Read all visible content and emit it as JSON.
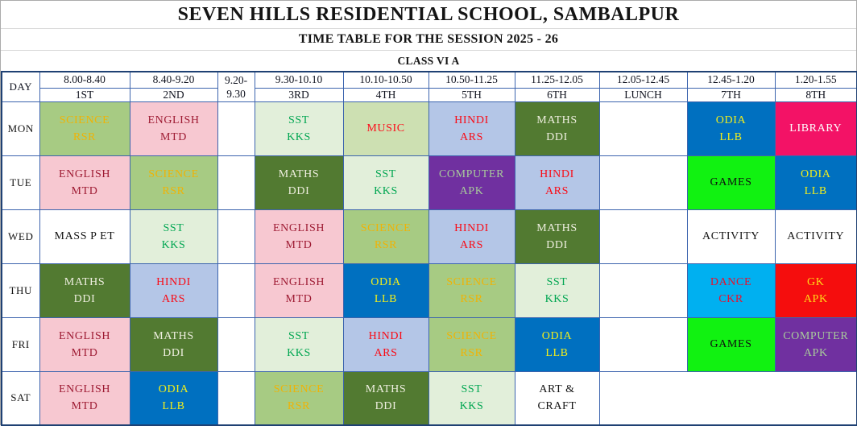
{
  "header": {
    "school_name": "SEVEN HILLS RESIDENTIAL SCHOOL, SAMBALPUR",
    "session_title": "TIME TABLE FOR THE SESSION 2025 - 26",
    "class_label": "CLASS VI A"
  },
  "table": {
    "day_header": "DAY",
    "columns": [
      {
        "time": "8.00-8.40",
        "period": "1ST"
      },
      {
        "time": "8.40-9.20",
        "period": "2ND"
      },
      {
        "time_lines": [
          "9.20-",
          "9.30"
        ],
        "is_break": true
      },
      {
        "time": "9.30-10.10",
        "period": "3RD"
      },
      {
        "time": "10.10-10.50",
        "period": "4TH"
      },
      {
        "time": "10.50-11.25",
        "period": "5TH"
      },
      {
        "time": "11.25-12.05",
        "period": "6TH"
      },
      {
        "time": "12.05-12.45",
        "period": "LUNCH"
      },
      {
        "time": "12.45-1.20",
        "period": "7TH"
      },
      {
        "time": "1.20-1.55",
        "period": "8TH"
      }
    ],
    "rows": [
      {
        "day": "MON",
        "cells": [
          {
            "lines": [
              "SCIENCE",
              "RSR"
            ],
            "style": "science"
          },
          {
            "lines": [
              "ENGLISH",
              "MTD"
            ],
            "style": "english"
          },
          {
            "lines": [],
            "style": "empty"
          },
          {
            "lines": [
              "SST",
              "KKS"
            ],
            "style": "sst"
          },
          {
            "lines": [
              "MUSIC"
            ],
            "style": "music"
          },
          {
            "lines": [
              "HINDI",
              "ARS"
            ],
            "style": "hindi"
          },
          {
            "lines": [
              "MATHS",
              "DDI"
            ],
            "style": "maths"
          },
          {
            "lines": [],
            "style": "empty"
          },
          {
            "lines": [
              "ODIA",
              "LLB"
            ],
            "style": "odia"
          },
          {
            "lines": [
              "LIBRARY"
            ],
            "style": "library"
          }
        ]
      },
      {
        "day": "TUE",
        "cells": [
          {
            "lines": [
              "ENGLISH",
              "MTD"
            ],
            "style": "english"
          },
          {
            "lines": [
              "SCIENCE",
              "RSR"
            ],
            "style": "science"
          },
          {
            "lines": [],
            "style": "empty"
          },
          {
            "lines": [
              "MATHS",
              "DDI"
            ],
            "style": "maths"
          },
          {
            "lines": [
              "SST",
              "KKS"
            ],
            "style": "sst"
          },
          {
            "lines": [
              "COMPUTER",
              "APK"
            ],
            "style": "computer"
          },
          {
            "lines": [
              "HINDI",
              "ARS"
            ],
            "style": "hindi"
          },
          {
            "lines": [],
            "style": "empty"
          },
          {
            "lines": [
              "GAMES"
            ],
            "style": "games"
          },
          {
            "lines": [
              "ODIA",
              "LLB"
            ],
            "style": "odia"
          }
        ]
      },
      {
        "day": "WED",
        "cells": [
          {
            "lines": [
              "MASS P ET"
            ],
            "style": "plain"
          },
          {
            "lines": [
              "SST",
              "KKS"
            ],
            "style": "sst"
          },
          {
            "lines": [],
            "style": "empty"
          },
          {
            "lines": [
              "ENGLISH",
              "MTD"
            ],
            "style": "english"
          },
          {
            "lines": [
              "SCIENCE",
              "RSR"
            ],
            "style": "science"
          },
          {
            "lines": [
              "HINDI",
              "ARS"
            ],
            "style": "hindi"
          },
          {
            "lines": [
              "MATHS",
              "DDI"
            ],
            "style": "maths"
          },
          {
            "lines": [],
            "style": "empty"
          },
          {
            "lines": [
              "ACTIVITY"
            ],
            "style": "plain"
          },
          {
            "lines": [
              "ACTIVITY"
            ],
            "style": "plain"
          }
        ]
      },
      {
        "day": "THU",
        "cells": [
          {
            "lines": [
              "MATHS",
              "DDI"
            ],
            "style": "maths"
          },
          {
            "lines": [
              "HINDI",
              "ARS"
            ],
            "style": "hindi"
          },
          {
            "lines": [],
            "style": "empty"
          },
          {
            "lines": [
              "ENGLISH",
              "MTD"
            ],
            "style": "english"
          },
          {
            "lines": [
              "ODIA",
              "LLB"
            ],
            "style": "odia"
          },
          {
            "lines": [
              "SCIENCE",
              "RSR"
            ],
            "style": "science"
          },
          {
            "lines": [
              "SST",
              "KKS"
            ],
            "style": "sst"
          },
          {
            "lines": [],
            "style": "empty"
          },
          {
            "lines": [
              "DANCE",
              "CKR"
            ],
            "style": "dance"
          },
          {
            "lines": [
              "GK",
              "APK"
            ],
            "style": "gk"
          }
        ]
      },
      {
        "day": "FRI",
        "cells": [
          {
            "lines": [
              "ENGLISH",
              "MTD"
            ],
            "style": "english"
          },
          {
            "lines": [
              "MATHS",
              "DDI"
            ],
            "style": "maths"
          },
          {
            "lines": [],
            "style": "empty"
          },
          {
            "lines": [
              "SST",
              "KKS"
            ],
            "style": "sst"
          },
          {
            "lines": [
              "HINDI",
              "ARS"
            ],
            "style": "hindi"
          },
          {
            "lines": [
              "SCIENCE",
              "RSR"
            ],
            "style": "science"
          },
          {
            "lines": [
              "ODIA",
              "LLB"
            ],
            "style": "odia"
          },
          {
            "lines": [],
            "style": "empty"
          },
          {
            "lines": [
              "GAMES"
            ],
            "style": "games"
          },
          {
            "lines": [
              "COMPUTER",
              "APK"
            ],
            "style": "computer"
          }
        ]
      },
      {
        "day": "SAT",
        "cells": [
          {
            "lines": [
              "ENGLISH",
              "MTD"
            ],
            "style": "english"
          },
          {
            "lines": [
              "ODIA",
              "LLB"
            ],
            "style": "odia"
          },
          {
            "lines": [],
            "style": "empty"
          },
          {
            "lines": [
              "SCIENCE",
              "RSR"
            ],
            "style": "science"
          },
          {
            "lines": [
              "MATHS",
              "DDI"
            ],
            "style": "maths"
          },
          {
            "lines": [
              "SST",
              "KKS"
            ],
            "style": "sst"
          },
          {
            "lines": [
              "ART &",
              "CRAFT"
            ],
            "style": "plain"
          },
          {
            "lines": [],
            "style": "empty",
            "span": 3
          }
        ]
      }
    ]
  },
  "colors": {
    "grid_border": "#3c64ae",
    "outer_border": "#1f4173",
    "styles": {
      "science": {
        "bg": "#a7cb83",
        "fg": "#efb306"
      },
      "english": {
        "bg": "#f7c8d1",
        "fg": "#9e1b33"
      },
      "sst": {
        "bg": "#e2efda",
        "fg": "#00a651"
      },
      "music": {
        "bg": "#cde0b2",
        "fg": "#fc0d1b"
      },
      "hindi": {
        "bg": "#b4c6e7",
        "fg": "#fa0a14"
      },
      "maths": {
        "bg": "#527a31",
        "fg": "#efefe0"
      },
      "computer": {
        "bg": "#7030a0",
        "fg": "#a8cb9b"
      },
      "odia": {
        "bg": "#0070c0",
        "fg": "#f1ed1c"
      },
      "library": {
        "bg": "#f31266",
        "fg": "#fdfdfd"
      },
      "games": {
        "bg": "#11f211",
        "fg": "#101010"
      },
      "dance": {
        "bg": "#00b0f0",
        "fg": "#e8112e"
      },
      "gk": {
        "bg": "#f50d0d",
        "fg": "#ffd918"
      },
      "plain": {
        "bg": "#ffffff",
        "fg": "#141414"
      },
      "empty": {
        "bg": "#ffffff",
        "fg": "#141414"
      }
    }
  }
}
